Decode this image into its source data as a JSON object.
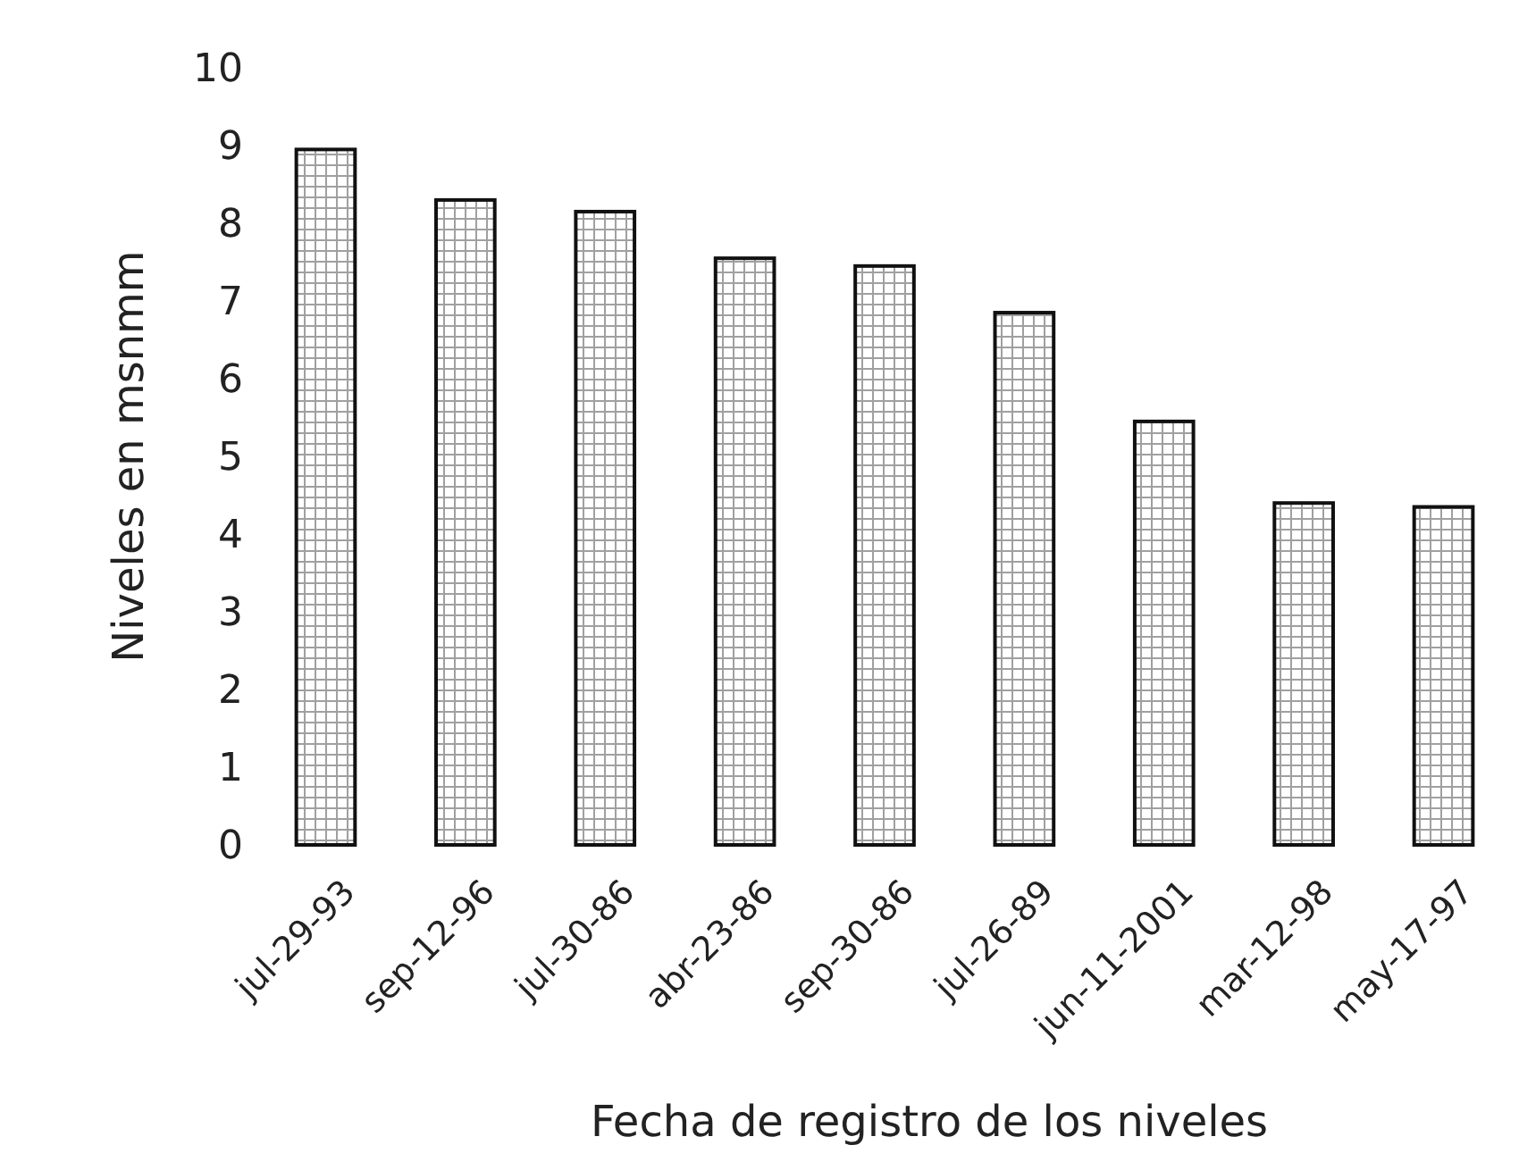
{
  "chart_data": {
    "type": "bar",
    "xlabel": "Fecha de registro de los niveles",
    "ylabel": "Niveles en msnmm",
    "categories": [
      "jul-29-93",
      "sep-12-96",
      "jul-30-86",
      "abr-23-86",
      "sep-30-86",
      "jul-26-89",
      "jun-11-2001",
      "mar-12-98",
      "may-17-97"
    ],
    "values": [
      8.95,
      8.3,
      8.15,
      7.55,
      7.45,
      6.85,
      5.45,
      4.4,
      4.35
    ],
    "color": "#111111",
    "ylim": [
      0,
      10
    ],
    "yticks": [
      0,
      1,
      2,
      3,
      4,
      5,
      6,
      7,
      8,
      9,
      10
    ],
    "grid": false
  }
}
